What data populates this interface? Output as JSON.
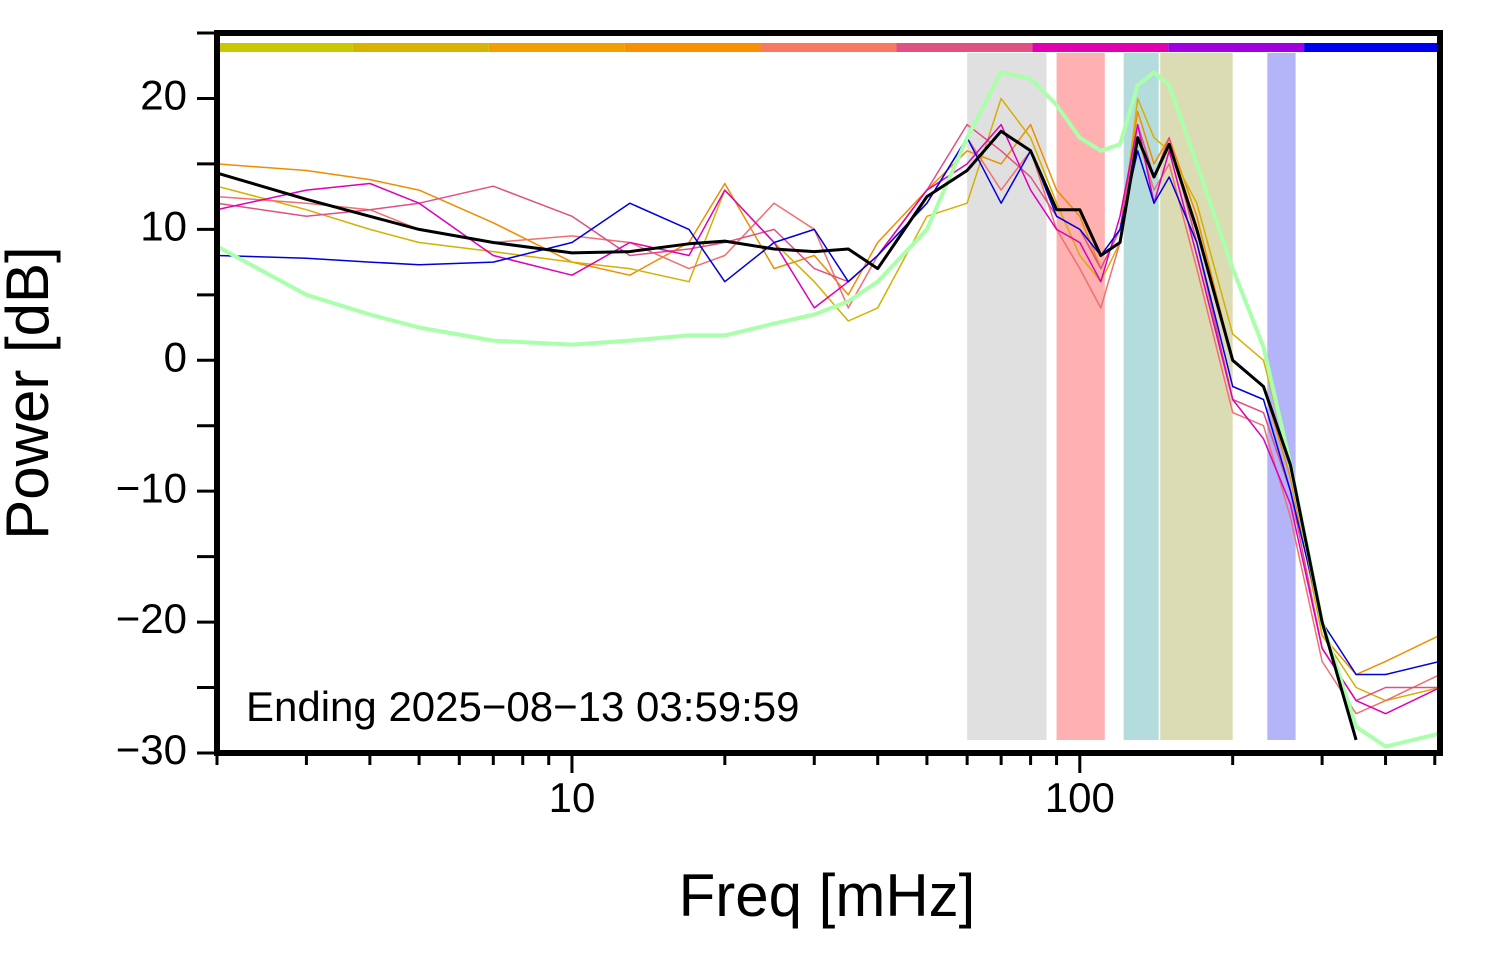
{
  "chart_data": {
    "type": "line",
    "xlabel": "Freq [mHz]",
    "ylabel": "Power [dB]",
    "annotation": "Ending 2025−08−13 03:59:59",
    "xscale": "log",
    "xlim": [
      2,
      512
    ],
    "ylim": [
      -30,
      25
    ],
    "xticks": [
      10,
      100
    ],
    "xminor": [
      2,
      3,
      4,
      5,
      6,
      7,
      8,
      9,
      20,
      30,
      40,
      50,
      60,
      70,
      80,
      90,
      200,
      300,
      400,
      500
    ],
    "yticks": [
      {
        "value": -30,
        "label": "−30"
      },
      {
        "value": -20,
        "label": "−20"
      },
      {
        "value": -10,
        "label": "−10"
      },
      0,
      10,
      20
    ],
    "yminor": [
      -25,
      -15,
      -5,
      5,
      15,
      25
    ],
    "color_bar": [
      "#c8c800",
      "#d8b400",
      "#f0a000",
      "#f89000",
      "#f87860",
      "#e05080",
      "#e000b0",
      "#a000e0",
      "#0000f0"
    ],
    "bands": [
      {
        "x": [
          60,
          86
        ],
        "color": "#e0e0e0"
      },
      {
        "x": [
          90,
          112
        ],
        "color": "#ffb0b0"
      },
      {
        "x": [
          122,
          143
        ],
        "color": "#b4dcdc"
      },
      {
        "x": [
          144,
          200
        ],
        "color": "#dcdcb4"
      },
      {
        "x": [
          234,
          266
        ],
        "color": "#b4b4f8"
      }
    ],
    "x": [
      2,
      3,
      4,
      5,
      7,
      10,
      13,
      17,
      20,
      25,
      30,
      35,
      40,
      50,
      60,
      70,
      80,
      90,
      100,
      110,
      120,
      130,
      140,
      150,
      170,
      200,
      230,
      260,
      300,
      350,
      400,
      512
    ],
    "series": [
      {
        "color": "#f08c00",
        "width": 1.5,
        "values": [
          15,
          14.5,
          13.8,
          13,
          10.5,
          7.5,
          6.5,
          9,
          13.5,
          7,
          8,
          5,
          9,
          13,
          16,
          15,
          18,
          13,
          11,
          7,
          10,
          19,
          15,
          17,
          11,
          0,
          -2,
          -9,
          -21,
          -24,
          -23,
          -21
        ]
      },
      {
        "color": "#d4b000",
        "width": 1.5,
        "values": [
          13.3,
          11.5,
          10,
          9,
          8.3,
          7.5,
          7,
          6,
          13,
          9,
          6,
          3,
          4,
          11,
          12,
          20,
          17,
          12,
          8,
          6,
          9,
          20,
          17,
          16,
          12,
          2,
          0,
          -8,
          -21,
          -25,
          -26,
          -25
        ]
      },
      {
        "color": "#f07070",
        "width": 1.5,
        "values": [
          12.5,
          12,
          11.5,
          10,
          9,
          9.5,
          9,
          7,
          8,
          12,
          10,
          4,
          8,
          12,
          17,
          13,
          16,
          10,
          7,
          4,
          9,
          17,
          13,
          15,
          7,
          -4,
          -5,
          -12,
          -23,
          -27,
          -26,
          -24
        ]
      },
      {
        "color": "#e05080",
        "width": 1.5,
        "values": [
          12,
          11,
          11.5,
          12,
          13.3,
          11,
          8,
          8.5,
          9,
          10,
          7,
          6,
          8,
          13,
          18,
          16,
          14,
          11,
          10,
          7,
          10,
          18,
          14,
          17,
          9,
          -3,
          -4,
          -10,
          -22,
          -26,
          -25,
          -25
        ]
      },
      {
        "color": "#dd00bb",
        "width": 1.5,
        "values": [
          11.5,
          13,
          13.5,
          12,
          8,
          6.5,
          9,
          8,
          13,
          9,
          4,
          6,
          8,
          13,
          15,
          18,
          13,
          10,
          9,
          6,
          11,
          18,
          12,
          16,
          8,
          -3,
          -6,
          -11,
          -22,
          -26,
          -27,
          -25
        ]
      },
      {
        "color": "#0000dd",
        "width": 1.5,
        "values": [
          8,
          7.8,
          7.5,
          7.3,
          7.5,
          9,
          12,
          10,
          6,
          9,
          10,
          6,
          8,
          12,
          17,
          12,
          16,
          11,
          10,
          8,
          10,
          16,
          12,
          14,
          9,
          -2,
          -3,
          -10,
          -20,
          -24,
          -24,
          -23
        ]
      },
      {
        "color": "#aaffaa",
        "width": 4,
        "values": [
          8.7,
          5,
          3.5,
          2.5,
          1.5,
          1.2,
          1.5,
          1.9,
          1.9,
          2.8,
          3.5,
          4.5,
          6,
          10,
          17,
          22,
          21.5,
          19.5,
          17,
          16,
          16.5,
          21,
          22,
          21,
          15,
          7,
          1,
          -8,
          -20,
          -28,
          -29.5,
          -28.5
        ]
      },
      {
        "color": "#000000",
        "width": 3,
        "values": [
          14.3,
          12.3,
          11,
          10,
          9,
          8.2,
          8.3,
          8.9,
          9.1,
          8.5,
          8.3,
          8.5,
          7,
          12.5,
          14.5,
          17.5,
          16,
          11.5,
          11.5,
          8,
          9,
          17,
          14,
          16.5,
          10,
          0,
          -2,
          -8,
          -20,
          -29,
          null,
          null
        ]
      }
    ]
  }
}
